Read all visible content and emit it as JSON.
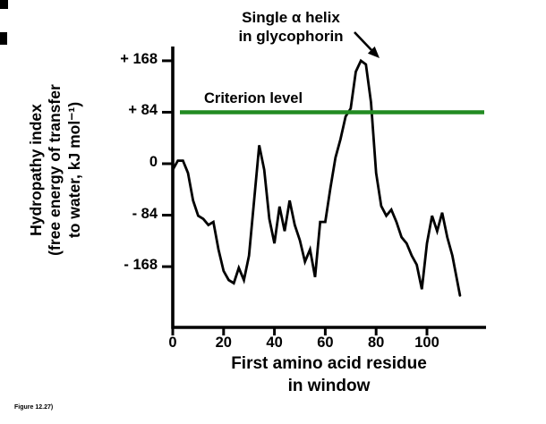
{
  "figure": {
    "caption": "Figure 12.27)",
    "annotation_line1": "Single α helix",
    "annotation_line2": "in glycophorin",
    "criterion_label": "Criterion level"
  },
  "chart_data": {
    "type": "line",
    "title": "",
    "xlabel": "First amino acid residue in window",
    "xlabel_lines": [
      "First amino acid residue",
      "in window"
    ],
    "ylabel": "Hydropathy index (free energy of transfer to water, kJ mol⁻¹)",
    "ylabel_lines": [
      "Hydropathy index",
      "(free energy of transfer",
      "to water, kJ mol⁻¹)"
    ],
    "xlim": [
      0,
      115
    ],
    "ylim": [
      -230,
      190
    ],
    "grid": false,
    "legend": "none",
    "xticks": [
      {
        "value": 0,
        "label": "0"
      },
      {
        "value": 20,
        "label": "20"
      },
      {
        "value": 40,
        "label": "40"
      },
      {
        "value": 60,
        "label": "60"
      },
      {
        "value": 80,
        "label": "80"
      },
      {
        "value": 100,
        "label": "100"
      }
    ],
    "yticks": [
      {
        "value": 168,
        "label": "+ 168"
      },
      {
        "value": 84,
        "label": "+ 84"
      },
      {
        "value": 0,
        "label": "0"
      },
      {
        "value": -84,
        "label": "- 84"
      },
      {
        "value": -168,
        "label": "- 168"
      }
    ],
    "criterion_level": 84,
    "annotation": {
      "text": "Single α helix in glycophorin",
      "points_to": {
        "x": 75,
        "y": 168
      }
    },
    "colors": {
      "line": "#000000",
      "criterion": "#228b22",
      "axis": "#000000"
    },
    "series": [
      {
        "name": "Hydropathy index",
        "x": [
          0,
          2,
          4,
          6,
          8,
          10,
          12,
          14,
          16,
          18,
          20,
          22,
          24,
          26,
          28,
          30,
          32,
          34,
          36,
          38,
          40,
          42,
          44,
          46,
          48,
          50,
          52,
          54,
          56,
          58,
          60,
          62,
          64,
          66,
          68,
          70,
          72,
          74,
          76,
          78,
          80,
          82,
          84,
          86,
          88,
          90,
          92,
          94,
          96,
          98,
          100,
          102,
          104,
          106,
          108,
          110,
          113
        ],
        "y": [
          -10,
          5,
          5,
          -15,
          -60,
          -85,
          -90,
          -100,
          -95,
          -140,
          -175,
          -190,
          -195,
          -170,
          -190,
          -150,
          -60,
          30,
          -10,
          -90,
          -130,
          -70,
          -110,
          -60,
          -100,
          -125,
          -160,
          -140,
          -185,
          -95,
          -95,
          -40,
          10,
          40,
          77,
          90,
          150,
          168,
          162,
          100,
          -15,
          -69,
          -85,
          -75,
          -95,
          -120,
          -130,
          -150,
          -165,
          -205,
          -130,
          -85,
          -110,
          -80,
          -120,
          -150,
          -215
        ]
      }
    ]
  }
}
